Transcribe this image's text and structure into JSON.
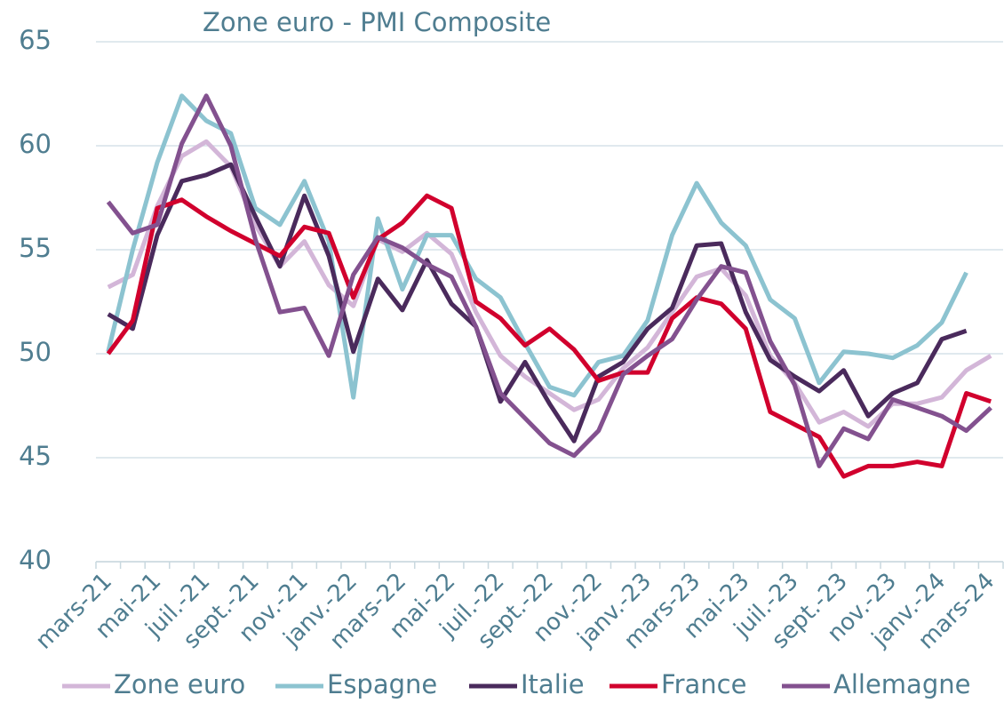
{
  "chart_data": {
    "type": "line",
    "title": "Zone euro - PMI Composite",
    "categories": [
      "mars-21",
      null,
      "mai-21",
      null,
      "juil.-21",
      null,
      "sept.-21",
      null,
      "nov.-21",
      null,
      "janv.-22",
      null,
      "mars-22",
      null,
      "mai-22",
      null,
      "juil.-22",
      null,
      "sept.-22",
      null,
      "nov.-22",
      null,
      "janv.-23",
      null,
      "mars-23",
      null,
      "mai-23",
      null,
      "juil.-23",
      null,
      "sept.-23",
      null,
      "nov.-23",
      null,
      "janv.-24",
      null,
      "mars-24"
    ],
    "series": [
      {
        "name": "Zone euro",
        "color": "#d3b6d8",
        "values": [
          53.2,
          53.8,
          57.1,
          59.5,
          60.2,
          59.0,
          56.2,
          54.2,
          55.4,
          53.3,
          52.3,
          55.5,
          54.9,
          55.8,
          54.8,
          52.0,
          49.9,
          48.9,
          48.1,
          47.3,
          47.8,
          49.3,
          50.3,
          52.0,
          53.7,
          54.1,
          52.8,
          49.9,
          48.6,
          46.7,
          47.2,
          46.5,
          47.6,
          47.6,
          47.9,
          49.2,
          49.9
        ]
      },
      {
        "name": "Espagne",
        "color": "#8cc3d0",
        "values": [
          50.1,
          55.0,
          59.2,
          62.4,
          61.2,
          60.6,
          57.0,
          56.2,
          58.3,
          55.4,
          47.9,
          56.5,
          53.1,
          55.7,
          55.7,
          53.6,
          52.7,
          50.5,
          48.4,
          48.0,
          49.6,
          49.9,
          51.6,
          55.7,
          58.2,
          56.3,
          55.2,
          52.6,
          51.7,
          48.6,
          50.1,
          50.0,
          49.8,
          50.4,
          51.5,
          53.9,
          null
        ]
      },
      {
        "name": "Italie",
        "color": "#4a2a5c",
        "values": [
          51.9,
          51.2,
          55.7,
          58.3,
          58.6,
          59.1,
          56.6,
          54.2,
          57.6,
          54.7,
          50.1,
          53.6,
          52.1,
          54.5,
          52.4,
          51.3,
          47.7,
          49.6,
          47.6,
          45.8,
          48.9,
          49.6,
          51.2,
          52.2,
          55.2,
          55.3,
          52.0,
          49.7,
          48.9,
          48.2,
          49.2,
          47.0,
          48.1,
          48.6,
          50.7,
          51.1,
          null
        ]
      },
      {
        "name": "France",
        "color": "#d1002d",
        "values": [
          50.0,
          51.6,
          57.0,
          57.4,
          56.6,
          55.9,
          55.3,
          54.7,
          56.1,
          55.8,
          52.7,
          55.5,
          56.3,
          57.6,
          57.0,
          52.5,
          51.7,
          50.4,
          51.2,
          50.2,
          48.7,
          49.1,
          49.1,
          51.7,
          52.7,
          52.4,
          51.2,
          47.2,
          46.6,
          46.0,
          44.1,
          44.6,
          44.6,
          44.8,
          44.6,
          48.1,
          47.7
        ]
      },
      {
        "name": "Allemagne",
        "color": "#83518f",
        "values": [
          57.3,
          55.8,
          56.2,
          60.1,
          62.4,
          60.0,
          55.5,
          52.0,
          52.2,
          49.9,
          53.8,
          55.6,
          55.1,
          54.3,
          53.7,
          51.3,
          48.1,
          46.9,
          45.7,
          45.1,
          46.3,
          49.0,
          49.9,
          50.7,
          52.6,
          54.2,
          53.9,
          50.6,
          48.5,
          44.6,
          46.4,
          45.9,
          47.8,
          47.4,
          47.0,
          46.3,
          47.4
        ]
      }
    ],
    "ylim": [
      40,
      65
    ],
    "yticks": [
      40,
      45,
      50,
      55,
      60,
      65
    ],
    "grid": true,
    "legend": "bottom"
  }
}
